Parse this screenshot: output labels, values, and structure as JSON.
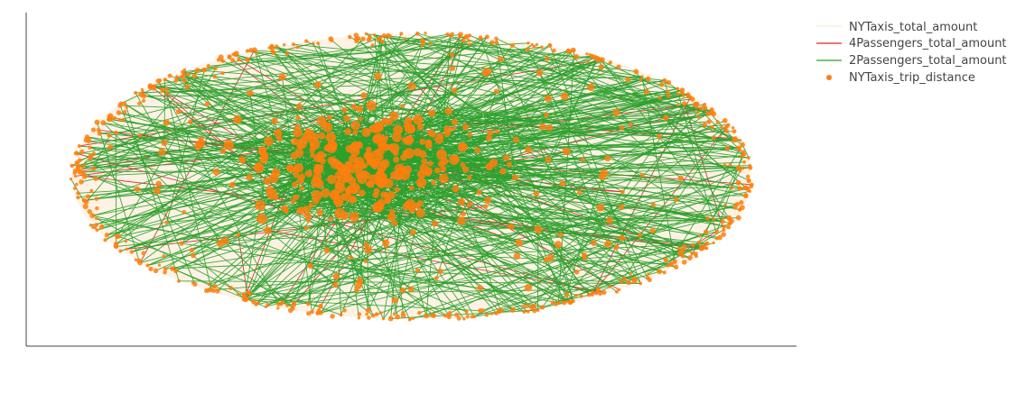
{
  "chart_data": {
    "type": "scatter",
    "title": "",
    "xlabel": "",
    "ylabel": "",
    "grid": false,
    "axes": {
      "x_visible_ticks": false,
      "y_visible_ticks": false
    },
    "legend_placement": "top-right",
    "layout_description": "network-style graph: nodes arranged in an ellipse ring with a dense cluster left of center",
    "series": [
      {
        "name": "NYTaxis_total_amount",
        "kind": "area-fill",
        "color": "#fdf2e4"
      },
      {
        "name": "4Passengers_total_amount",
        "kind": "line",
        "color": "#d62728"
      },
      {
        "name": "2Passengers_total_amount",
        "kind": "line",
        "color": "#2ca02c"
      },
      {
        "name": "NYTaxis_trip_distance",
        "kind": "markers",
        "color": "#ff7f0e"
      }
    ],
    "counts": {
      "ring_nodes": 520,
      "inner_nodes": 150,
      "cluster_nodes": 260,
      "green_edges_global": 520,
      "green_edges_cluster": 520,
      "red_edges": 40
    }
  }
}
